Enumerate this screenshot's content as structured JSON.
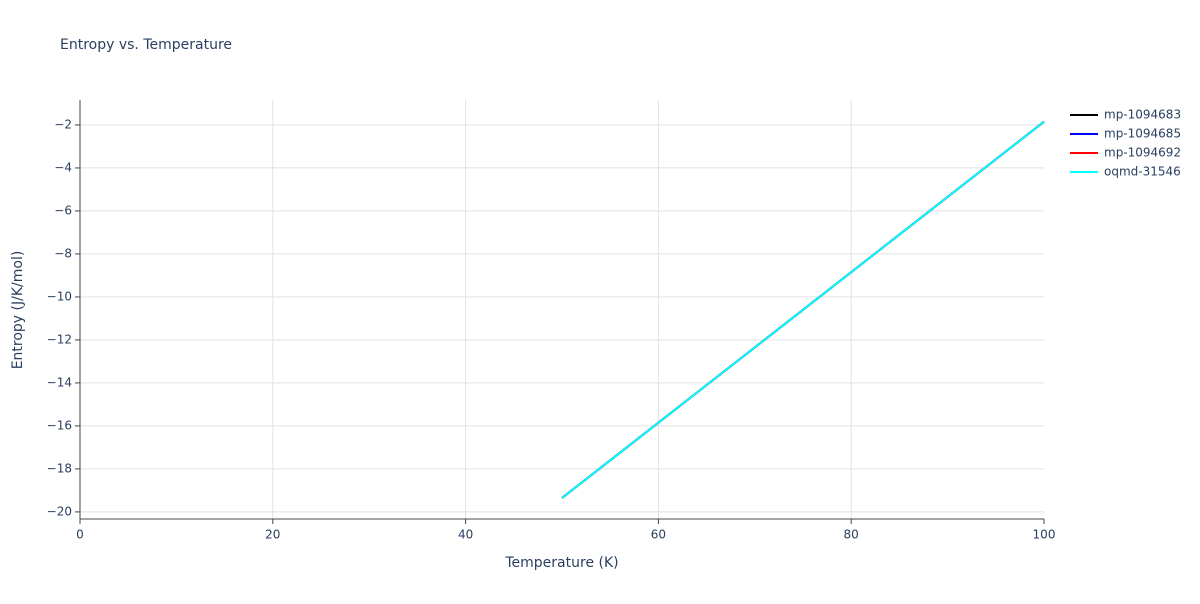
{
  "chart_data": {
    "type": "line",
    "title": "Entropy vs. Temperature",
    "x_label": "Temperature (K)",
    "y_label": "Entropy (J/K/mol)",
    "x": [
      50,
      60,
      70,
      80,
      90,
      100
    ],
    "series": [
      {
        "name": "mp-1094683",
        "color": "#000000",
        "values": [
          -19.35,
          -15.85,
          -12.35,
          -8.85,
          -5.35,
          -1.85
        ]
      },
      {
        "name": "mp-1094685",
        "color": "#0000ff",
        "values": [
          -19.35,
          -15.85,
          -12.35,
          -8.85,
          -5.35,
          -1.85
        ]
      },
      {
        "name": "mp-1094692",
        "color": "#ff0000",
        "values": [
          -19.35,
          -15.85,
          -12.35,
          -8.85,
          -5.35,
          -1.85
        ]
      },
      {
        "name": "oqmd-31546",
        "color": "#00ffff",
        "values": [
          -19.35,
          -15.85,
          -12.35,
          -8.85,
          -5.35,
          -1.85
        ]
      }
    ],
    "xlim": [
      0,
      100
    ],
    "xticks": [
      0,
      20,
      40,
      60,
      80,
      100
    ],
    "ylim": [
      -20.33,
      -0.84
    ],
    "yticks": [
      {
        "value": -2,
        "label": "−2"
      },
      {
        "value": -4,
        "label": "−4"
      },
      {
        "value": -6,
        "label": "−6"
      },
      {
        "value": -8,
        "label": "−8"
      },
      {
        "value": -10,
        "label": "−10"
      },
      {
        "value": -12,
        "label": "−12"
      },
      {
        "value": -14,
        "label": "−14"
      },
      {
        "value": -16,
        "label": "−16"
      },
      {
        "value": -18,
        "label": "−18"
      },
      {
        "value": -20,
        "label": "−20"
      }
    ],
    "grid": true,
    "legend": "right"
  }
}
